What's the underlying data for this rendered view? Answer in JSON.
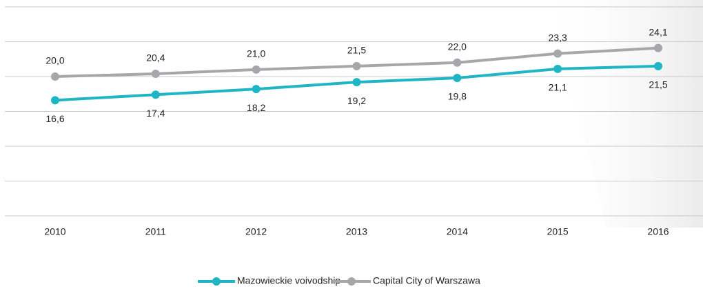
{
  "chart_data": {
    "type": "line",
    "categories": [
      "2010",
      "2011",
      "2012",
      "2013",
      "2014",
      "2015",
      "2016"
    ],
    "series": [
      {
        "name": "Mazowieckie voivodship",
        "color": "#1fb5c4",
        "values": [
          16.6,
          17.4,
          18.2,
          19.2,
          19.8,
          21.1,
          21.5
        ],
        "value_labels": [
          "16,6",
          "17,4",
          "18,2",
          "19,2",
          "19,8",
          "21,1",
          "21,5"
        ]
      },
      {
        "name": "Capital City of Warszawa",
        "color": "#a7a6ab",
        "values": [
          20.0,
          20.4,
          21.0,
          21.5,
          22.0,
          23.3,
          24.1
        ],
        "value_labels": [
          "20,0",
          "20,4",
          "21,0",
          "21,5",
          "22,0",
          "23,3",
          "24,1"
        ]
      }
    ],
    "ylim": [
      0,
      30
    ],
    "yticks": [
      0,
      5,
      10,
      15,
      20,
      25,
      30
    ],
    "grid": true
  }
}
